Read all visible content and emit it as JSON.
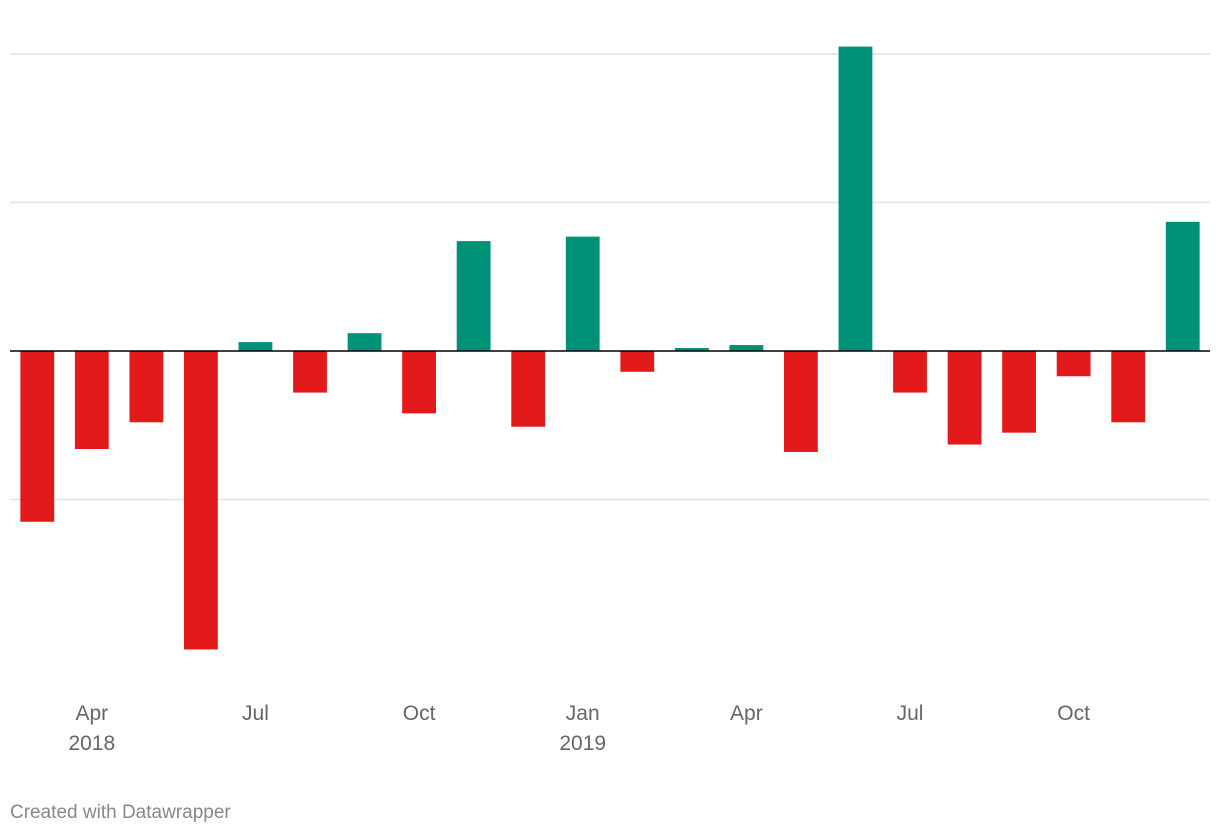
{
  "chart_data": {
    "type": "bar",
    "categories": [
      "2018-03",
      "2018-04",
      "2018-05",
      "2018-06",
      "2018-07",
      "2018-08",
      "2018-09",
      "2018-10",
      "2018-11",
      "2018-12",
      "2019-01",
      "2019-02",
      "2019-03",
      "2019-04",
      "2019-05",
      "2019-06",
      "2019-07",
      "2019-08",
      "2019-09",
      "2019-10",
      "2019-11",
      "2019-12"
    ],
    "values": [
      -1.15,
      -0.66,
      -0.48,
      -2.01,
      0.06,
      -0.28,
      0.12,
      -0.42,
      0.74,
      -0.51,
      0.77,
      -0.14,
      0.02,
      0.04,
      -0.68,
      2.05,
      -0.28,
      -0.63,
      -0.55,
      -0.17,
      -0.48,
      0.87
    ],
    "ylim": [
      -2.3,
      2.2
    ],
    "gridlines": [
      -1,
      1,
      2
    ],
    "grid": true,
    "legend": "none",
    "colors": {
      "positive": "#009179",
      "negative": "#e31a1c",
      "grid": "#e2e2e2",
      "zero_line": "#000000"
    },
    "x_ticks": [
      {
        "category": "2018-04",
        "label": "Apr",
        "year": "2018"
      },
      {
        "category": "2018-07",
        "label": "Jul"
      },
      {
        "category": "2018-10",
        "label": "Oct"
      },
      {
        "category": "2019-01",
        "label": "Jan",
        "year": "2019"
      },
      {
        "category": "2019-04",
        "label": "Apr"
      },
      {
        "category": "2019-07",
        "label": "Jul"
      },
      {
        "category": "2019-10",
        "label": "Oct"
      }
    ]
  },
  "footer": {
    "credit": "Created with Datawrapper"
  }
}
